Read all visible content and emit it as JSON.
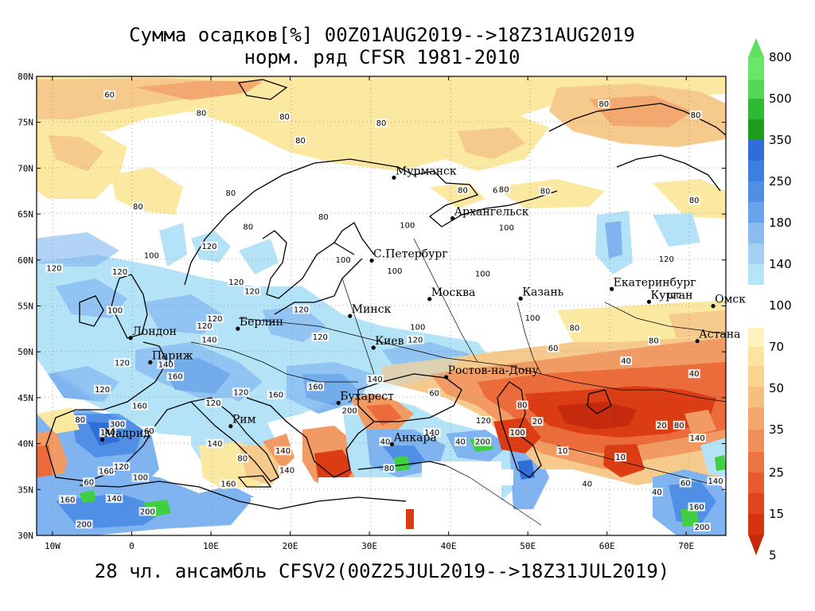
{
  "title": {
    "line1": "Сумма осадков[%] 00Z01AUG2019-->18Z31AUG2019",
    "line2": "норм. ряд CFSR 1981-2010"
  },
  "footer": "28 чл. ансамбль CFSV2(00Z25JUL2019-->18Z31JUL2019)",
  "axes": {
    "lat_labels": [
      "80N",
      "75N",
      "70N",
      "65N",
      "60N",
      "55N",
      "50N",
      "45N",
      "40N",
      "35N",
      "30N"
    ],
    "lon_labels": [
      "10W",
      "0",
      "10E",
      "20E",
      "30E",
      "40E",
      "50E",
      "60E",
      "70E"
    ]
  },
  "colorbar": {
    "levels": [
      "800",
      "500",
      "350",
      "250",
      "180",
      "140",
      "100",
      "70",
      "50",
      "35",
      "25",
      "15",
      "5"
    ],
    "colors": {
      "gt_800": "#5fe060",
      "500_800": "#3fcf40",
      "350_500": "#1e9e1e",
      "250_350": "#2f6ed8",
      "180_250": "#4f8fe6",
      "140_180": "#7fb4f0",
      "100_140": "#b4e2f7",
      "70_100": "#ffffff",
      "50_70": "#fbe9a2",
      "35_50": "#f6c98c",
      "25_35": "#f19a63",
      "15_25": "#ec6b3a",
      "5_15": "#dc3c14",
      "lt_5": "#c52a0c"
    }
  },
  "cities": [
    {
      "name": "Мурманск",
      "lon": 33.1,
      "lat": 68.97
    },
    {
      "name": "Архангельск",
      "lon": 40.5,
      "lat": 64.55
    },
    {
      "name": "С.Петербург",
      "lon": 30.3,
      "lat": 59.94
    },
    {
      "name": "Москва",
      "lon": 37.6,
      "lat": 55.75
    },
    {
      "name": "Казань",
      "lon": 49.1,
      "lat": 55.8
    },
    {
      "name": "Екатеринбург",
      "lon": 60.6,
      "lat": 56.84
    },
    {
      "name": "Курган",
      "lon": 65.3,
      "lat": 55.45
    },
    {
      "name": "Омск",
      "lon": 73.4,
      "lat": 54.99
    },
    {
      "name": "Астана",
      "lon": 71.4,
      "lat": 51.17
    },
    {
      "name": "Минск",
      "lon": 27.56,
      "lat": 53.9
    },
    {
      "name": "Берлин",
      "lon": 13.4,
      "lat": 52.52
    },
    {
      "name": "Лондон",
      "lon": -0.13,
      "lat": 51.51
    },
    {
      "name": "Париж",
      "lon": 2.35,
      "lat": 48.86
    },
    {
      "name": "Киев",
      "lon": 30.52,
      "lat": 50.45
    },
    {
      "name": "Ростов-на-Дону",
      "lon": 39.7,
      "lat": 47.24
    },
    {
      "name": "Бухарест",
      "lon": 26.1,
      "lat": 44.43
    },
    {
      "name": "Рим",
      "lon": 12.5,
      "lat": 41.9
    },
    {
      "name": "Мадрид",
      "lon": -3.7,
      "lat": 40.42
    },
    {
      "name": "Анкара",
      "lon": 32.85,
      "lat": 39.93
    }
  ],
  "contour_labels": [
    {
      "text": "60",
      "lon": -2.8,
      "lat": 77.8
    },
    {
      "text": "80",
      "lon": 8.8,
      "lat": 75.8
    },
    {
      "text": "80",
      "lon": 19.3,
      "lat": 75.4
    },
    {
      "text": "80",
      "lon": 31.5,
      "lat": 74.7
    },
    {
      "text": "80",
      "lon": 59.6,
      "lat": 76.8
    },
    {
      "text": "80",
      "lon": 71.2,
      "lat": 75.6
    },
    {
      "text": "80",
      "lon": 21.3,
      "lat": 72.8
    },
    {
      "text": "80",
      "lon": 12.5,
      "lat": 67.1
    },
    {
      "text": "80",
      "lon": 41.8,
      "lat": 67.4
    },
    {
      "text": "60",
      "lon": 46.2,
      "lat": 67.4
    },
    {
      "text": "80",
      "lon": 47.0,
      "lat": 67.5
    },
    {
      "text": "80",
      "lon": 52.2,
      "lat": 67.3
    },
    {
      "text": "80",
      "lon": 71.0,
      "lat": 66.3
    },
    {
      "text": "80",
      "lon": 0.8,
      "lat": 65.6
    },
    {
      "text": "80",
      "lon": 14.7,
      "lat": 63.4
    },
    {
      "text": "80",
      "lon": 24.2,
      "lat": 64.5
    },
    {
      "text": "100",
      "lon": 34.8,
      "lat": 63.6
    },
    {
      "text": "100",
      "lon": 47.3,
      "lat": 63.3
    },
    {
      "text": "120",
      "lon": 9.8,
      "lat": 61.3
    },
    {
      "text": "100",
      "lon": 2.5,
      "lat": 60.3
    },
    {
      "text": "100",
      "lon": 26.7,
      "lat": 59.8
    },
    {
      "text": "100",
      "lon": 33.2,
      "lat": 58.6
    },
    {
      "text": "120",
      "lon": -9.8,
      "lat": 58.9
    },
    {
      "text": "120",
      "lon": -1.5,
      "lat": 58.5
    },
    {
      "text": "120",
      "lon": 13.2,
      "lat": 57.4
    },
    {
      "text": "120",
      "lon": 15.2,
      "lat": 56.4
    },
    {
      "text": "100",
      "lon": 44.3,
      "lat": 58.3
    },
    {
      "text": "120",
      "lon": 67.5,
      "lat": 59.9
    },
    {
      "text": "120",
      "lon": 68.4,
      "lat": 55.9
    },
    {
      "text": "100",
      "lon": -2.1,
      "lat": 54.3
    },
    {
      "text": "120",
      "lon": 10.5,
      "lat": 53.4
    },
    {
      "text": "120",
      "lon": 9.2,
      "lat": 52.6
    },
    {
      "text": "120",
      "lon": 21.4,
      "lat": 54.4
    },
    {
      "text": "100",
      "lon": 36.1,
      "lat": 52.5
    },
    {
      "text": "100",
      "lon": 50.6,
      "lat": 53.5
    },
    {
      "text": "80",
      "lon": 55.9,
      "lat": 52.4
    },
    {
      "text": "80",
      "lon": 65.9,
      "lat": 51.0
    },
    {
      "text": "140",
      "lon": 9.8,
      "lat": 51.1
    },
    {
      "text": "120",
      "lon": 23.8,
      "lat": 51.4
    },
    {
      "text": "120",
      "lon": 35.8,
      "lat": 51.1
    },
    {
      "text": "60",
      "lon": 53.2,
      "lat": 50.2
    },
    {
      "text": "120",
      "lon": -1.2,
      "lat": 48.6
    },
    {
      "text": "140",
      "lon": 4.3,
      "lat": 48.4
    },
    {
      "text": "40",
      "lon": 62.4,
      "lat": 48.8
    },
    {
      "text": "160",
      "lon": 5.5,
      "lat": 47.1
    },
    {
      "text": "140",
      "lon": 30.7,
      "lat": 46.8
    },
    {
      "text": "40",
      "lon": 71.0,
      "lat": 47.4
    },
    {
      "text": "120",
      "lon": -3.7,
      "lat": 45.7
    },
    {
      "text": "120",
      "lon": 13.8,
      "lat": 45.4
    },
    {
      "text": "160",
      "lon": 18.2,
      "lat": 45.1
    },
    {
      "text": "160",
      "lon": 23.2,
      "lat": 46.0
    },
    {
      "text": "60",
      "lon": 38.2,
      "lat": 45.3
    },
    {
      "text": "80",
      "lon": 49.3,
      "lat": 44.0
    },
    {
      "text": "160",
      "lon": 1.0,
      "lat": 43.9
    },
    {
      "text": "200",
      "lon": 27.5,
      "lat": 43.4
    },
    {
      "text": "120",
      "lon": 10.3,
      "lat": 44.2
    },
    {
      "text": "120",
      "lon": 44.4,
      "lat": 42.3
    },
    {
      "text": "20",
      "lon": 51.2,
      "lat": 42.2
    },
    {
      "text": "20",
      "lon": 66.9,
      "lat": 41.8
    },
    {
      "text": "80",
      "lon": 69.1,
      "lat": 41.8
    },
    {
      "text": "300",
      "lon": -1.8,
      "lat": 41.9
    },
    {
      "text": "80",
      "lon": -6.5,
      "lat": 42.4
    },
    {
      "text": "140",
      "lon": -3.0,
      "lat": 41.0
    },
    {
      "text": "60",
      "lon": 2.2,
      "lat": 41.2
    },
    {
      "text": "140",
      "lon": 10.5,
      "lat": 39.8
    },
    {
      "text": "40",
      "lon": 32.0,
      "lat": 40.0
    },
    {
      "text": "140",
      "lon": 37.9,
      "lat": 41.0
    },
    {
      "text": "40",
      "lon": 41.5,
      "lat": 40.0
    },
    {
      "text": "200",
      "lon": 44.3,
      "lat": 40.0
    },
    {
      "text": "100",
      "lon": 48.7,
      "lat": 41.0
    },
    {
      "text": "10",
      "lon": 54.4,
      "lat": 39.0
    },
    {
      "text": "10",
      "lon": 61.7,
      "lat": 38.3
    },
    {
      "text": "140",
      "lon": 71.4,
      "lat": 40.4
    },
    {
      "text": "80",
      "lon": 14.0,
      "lat": 38.2
    },
    {
      "text": "140",
      "lon": 19.1,
      "lat": 39.0
    },
    {
      "text": "80",
      "lon": 32.5,
      "lat": 37.1
    },
    {
      "text": "160",
      "lon": -3.2,
      "lat": 36.8
    },
    {
      "text": "120",
      "lon": -1.3,
      "lat": 37.3
    },
    {
      "text": "100",
      "lon": 1.1,
      "lat": 36.1
    },
    {
      "text": "160",
      "lon": 12.2,
      "lat": 35.4
    },
    {
      "text": "140",
      "lon": 19.6,
      "lat": 36.9
    },
    {
      "text": "60",
      "lon": -5.4,
      "lat": 35.6
    },
    {
      "text": "40",
      "lon": 57.5,
      "lat": 35.4
    },
    {
      "text": "60",
      "lon": 69.9,
      "lat": 35.5
    },
    {
      "text": "140",
      "lon": 73.7,
      "lat": 35.7
    },
    {
      "text": "140",
      "lon": -2.2,
      "lat": 33.8
    },
    {
      "text": "160",
      "lon": -8.1,
      "lat": 33.7
    },
    {
      "text": "40",
      "lon": 66.3,
      "lat": 34.5
    },
    {
      "text": "160",
      "lon": 71.3,
      "lat": 32.9
    },
    {
      "text": "200",
      "lon": 2.0,
      "lat": 32.4
    },
    {
      "text": "200",
      "lon": -6.0,
      "lat": 31.0
    },
    {
      "text": "200",
      "lon": 72.0,
      "lat": 30.7
    }
  ]
}
